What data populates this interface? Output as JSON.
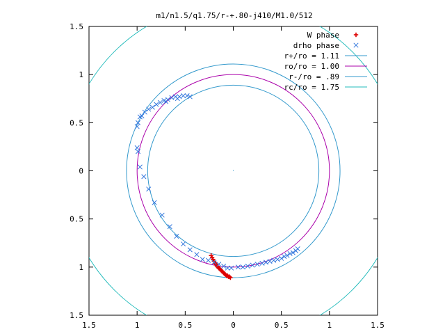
{
  "chart_data": {
    "type": "scatter",
    "title": "m1/n1.5/q1.75/r-+.80-j410/M1.0/512",
    "xlabel": "",
    "ylabel": "",
    "xlim": [
      -1.5,
      1.5
    ],
    "ylim": [
      -1.5,
      1.5
    ],
    "grid": false,
    "legend_position": "top-right",
    "x_tick_values": [
      -1.5,
      -1,
      -0.5,
      0,
      0.5,
      1,
      1.5
    ],
    "x_tick_labels": [
      "1.5",
      "1",
      "0.5",
      "0",
      "0.5",
      "1",
      "1.5"
    ],
    "y_tick_values": [
      1.5,
      1,
      0.5,
      0,
      -0.5,
      -1,
      -1.5
    ],
    "y_tick_labels": [
      "1.5",
      "1",
      "0.5",
      "0",
      "0.5",
      "1",
      "1.5"
    ],
    "circles": [
      {
        "name": "r+/ro = 1.11",
        "radius": 1.11,
        "color": "#3399cc"
      },
      {
        "name": "ro/ro = 1.00",
        "radius": 1.0,
        "color": "#aa00aa"
      },
      {
        "name": "r-/ro = .89",
        "radius": 0.89,
        "color": "#3399cc"
      },
      {
        "name": "rc/ro = 1.75",
        "radius": 1.75,
        "color": "#22bbbb"
      }
    ],
    "series": [
      {
        "name": "W phase",
        "marker": "+",
        "color": "#dd0000",
        "x": [
          -0.23,
          -0.22,
          -0.21,
          -0.2,
          -0.19,
          -0.18,
          -0.17,
          -0.16,
          -0.15,
          -0.14,
          -0.13,
          -0.12,
          -0.11,
          -0.1,
          -0.09,
          -0.08,
          -0.07,
          -0.06,
          -0.05,
          -0.04,
          -0.03
        ],
        "y": [
          -0.88,
          -0.9,
          -0.92,
          -0.94,
          -0.96,
          -0.97,
          -0.99,
          -1.0,
          -1.01,
          -1.02,
          -1.03,
          -1.04,
          -1.05,
          -1.06,
          -1.07,
          -1.08,
          -1.09,
          -1.09,
          -1.1,
          -1.1,
          -1.11
        ]
      },
      {
        "name": "drho phase",
        "marker": "x",
        "color": "#3377dd",
        "x": [
          0.05,
          0.1,
          0.15,
          0.2,
          0.25,
          0.3,
          0.34,
          0.38,
          0.42,
          0.46,
          0.5,
          0.53,
          0.56,
          0.59,
          0.62,
          0.65,
          0.67,
          -0.02,
          -0.06,
          -0.1,
          -0.15,
          -0.2,
          -0.26,
          -0.32,
          -0.38,
          -0.45,
          -0.52,
          -0.59,
          -0.66,
          -0.74,
          -0.82,
          -0.88,
          -0.93,
          -0.97,
          -0.99,
          -1.0,
          -1.0,
          -0.99,
          -0.97,
          -0.95,
          -0.92,
          -0.88,
          -0.84,
          -0.8,
          -0.76,
          -0.72,
          -0.68,
          -0.64,
          -0.6,
          -0.56,
          -0.52,
          -0.48,
          -0.45,
          -0.7,
          -0.58
        ],
        "y": [
          -1.0,
          -1.0,
          -0.99,
          -0.98,
          -0.97,
          -0.96,
          -0.95,
          -0.94,
          -0.93,
          -0.92,
          -0.91,
          -0.89,
          -0.88,
          -0.86,
          -0.85,
          -0.83,
          -0.81,
          -1.01,
          -1.01,
          -0.99,
          -0.97,
          -0.95,
          -0.93,
          -0.92,
          -0.87,
          -0.82,
          -0.76,
          -0.68,
          -0.58,
          -0.46,
          -0.33,
          -0.19,
          -0.06,
          0.04,
          0.2,
          0.24,
          0.46,
          0.5,
          0.56,
          0.57,
          0.61,
          0.64,
          0.66,
          0.69,
          0.71,
          0.73,
          0.74,
          0.76,
          0.77,
          0.77,
          0.78,
          0.78,
          0.77,
          0.72,
          0.75
        ]
      }
    ],
    "annotations": [
      {
        "text": "·",
        "x": 0,
        "y": 0
      }
    ]
  }
}
